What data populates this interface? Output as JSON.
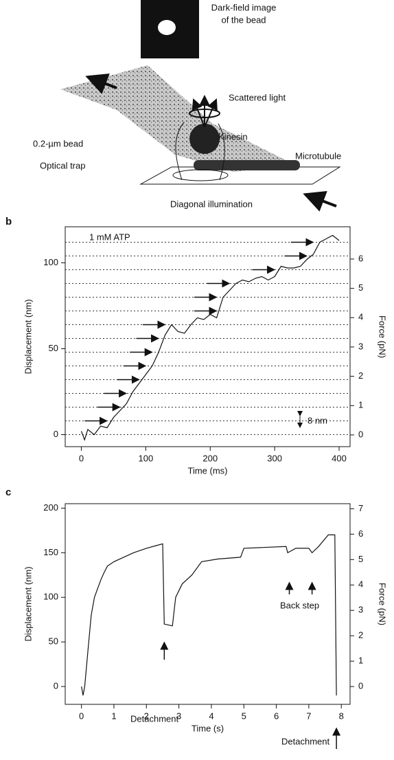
{
  "diagram": {
    "labels": [
      "Dark-field image",
      "of the bead",
      "Scattered light",
      "0.2-µm bead",
      "Kinesin",
      "Microtubule",
      "Optical trap",
      "Diagonal illumination"
    ]
  },
  "chart_data": [
    {
      "type": "line",
      "panel": "b",
      "annotations": [
        "1 mM ATP",
        "8 nm"
      ],
      "xlabel": "Time (ms)",
      "ylabel": "Displacement (nm)",
      "y2label": "Force (pN)",
      "xlim": [
        -25,
        417
      ],
      "ylim": [
        -7,
        121
      ],
      "y2lim": [
        -0.4,
        7.1
      ],
      "xticks": [
        0,
        100,
        200,
        300,
        400
      ],
      "yticks": [
        0,
        50,
        100
      ],
      "y2ticks": [
        0,
        1,
        2,
        3,
        4,
        5,
        6
      ],
      "guide_lines": [
        0,
        8,
        16,
        24,
        32,
        40,
        48,
        56,
        64,
        72,
        80,
        88,
        96,
        104,
        112
      ],
      "color": "#111111",
      "x": [
        0,
        5,
        10,
        20,
        30,
        40,
        50,
        60,
        70,
        80,
        90,
        100,
        110,
        120,
        130,
        140,
        150,
        160,
        170,
        180,
        190,
        200,
        210,
        220,
        230,
        240,
        250,
        260,
        270,
        280,
        290,
        300,
        310,
        320,
        330,
        340,
        350,
        360,
        370,
        380,
        390,
        400
      ],
      "values": [
        2,
        -3,
        3,
        0,
        5,
        4,
        10,
        14,
        18,
        25,
        30,
        35,
        40,
        48,
        58,
        64,
        60,
        59,
        64,
        68,
        67,
        70,
        68,
        80,
        84,
        88,
        90,
        89,
        91,
        92,
        90,
        92,
        98,
        97,
        97,
        98,
        102,
        105,
        112,
        114,
        116,
        113
      ]
    },
    {
      "type": "line",
      "panel": "c",
      "annotations": [
        "Detachment",
        "Back step",
        "Detachment"
      ],
      "xlabel": "Time (s)",
      "ylabel": "Displacement (nm)",
      "y2label": "Force (pN)",
      "xlim": [
        -0.5,
        8.27
      ],
      "ylim": [
        -20,
        205
      ],
      "y2lim": [
        -0.7,
        7.2
      ],
      "xticks": [
        0,
        1,
        2,
        3,
        4,
        5,
        6,
        7,
        8
      ],
      "yticks": [
        0,
        50,
        100,
        150,
        200
      ],
      "y2ticks": [
        0,
        1,
        2,
        3,
        4,
        5,
        6,
        7
      ],
      "color": "#111111",
      "x": [
        0,
        0.05,
        0.1,
        0.2,
        0.3,
        0.4,
        0.5,
        0.6,
        0.7,
        0.8,
        1,
        1.3,
        1.6,
        2,
        2.3,
        2.5,
        2.55,
        2.8,
        2.9,
        3.1,
        3.4,
        3.7,
        4.2,
        4.9,
        5,
        6.3,
        6.35,
        6.6,
        7.0,
        7.1,
        7.3,
        7.6,
        7.8,
        7.85
      ],
      "values": [
        0,
        -10,
        0,
        40,
        80,
        100,
        110,
        120,
        128,
        135,
        140,
        145,
        150,
        155,
        158,
        160,
        70,
        68,
        100,
        115,
        125,
        140,
        143,
        145,
        155,
        157,
        150,
        155,
        155,
        150,
        157,
        170,
        170,
        -10
      ]
    }
  ]
}
